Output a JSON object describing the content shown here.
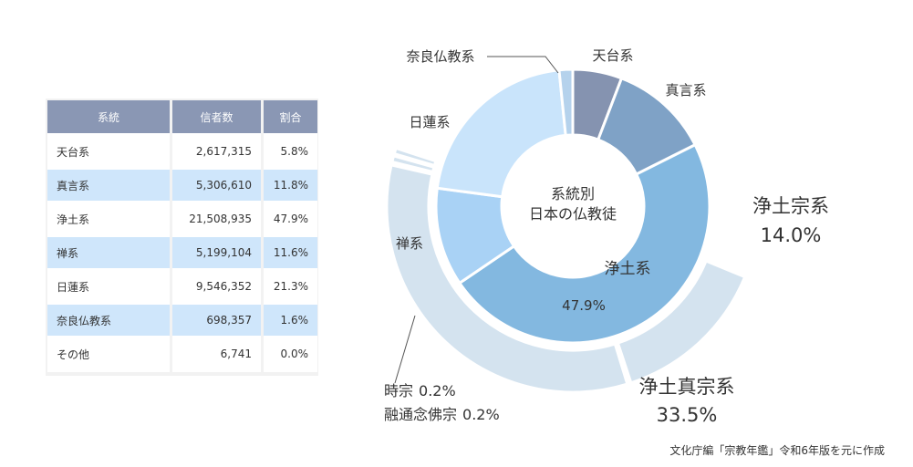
{
  "table": {
    "headers": [
      "系統",
      "信者数",
      "割合"
    ],
    "rows": [
      {
        "name": "天台系",
        "count": "2,617,315",
        "pct": "5.8%"
      },
      {
        "name": "真言系",
        "count": "5,306,610",
        "pct": "11.8%"
      },
      {
        "name": "浄土系",
        "count": "21,508,935",
        "pct": "47.9%"
      },
      {
        "name": "禅系",
        "count": "5,199,104",
        "pct": "11.6%"
      },
      {
        "name": "日蓮系",
        "count": "9,546,352",
        "pct": "21.3%"
      },
      {
        "name": "奈良仏教系",
        "count": "698,357",
        "pct": "1.6%"
      },
      {
        "name": "その他",
        "count": "6,741",
        "pct": "0.0%"
      }
    ]
  },
  "chart_data": {
    "type": "pie",
    "center_title_line1": "系統別",
    "center_title_line2": "日本の仏教徒",
    "slices": [
      {
        "label": "天台系",
        "value": 5.8,
        "color": "#8593b0"
      },
      {
        "label": "真言系",
        "value": 11.8,
        "color": "#7fa2c6"
      },
      {
        "label": "浄土系",
        "value": 47.9,
        "color": "#83b8e0",
        "inner_label": "浄土系",
        "inner_value": "47.9%"
      },
      {
        "label": "禅系",
        "value": 11.6,
        "color": "#a9d2f5"
      },
      {
        "label": "日蓮系",
        "value": 21.3,
        "color": "#c9e4fb"
      },
      {
        "label": "奈良仏教系",
        "value": 1.6,
        "color": "#b5d2ec"
      }
    ],
    "outer_ring": [
      {
        "label": "浄土宗系",
        "value": "14.0%",
        "color": "#d4e3ef"
      },
      {
        "label": "浄土真宗系",
        "value": "33.5%",
        "color": "#d4e3ef"
      },
      {
        "label": "時宗",
        "value": "0.2%",
        "color": "#d4e3ef"
      },
      {
        "label": "融通念佛宗",
        "value": "0.2%",
        "color": "#d4e3ef"
      }
    ],
    "source": "文化庁編「宗教年鑑」令和6年版を元に作成"
  }
}
